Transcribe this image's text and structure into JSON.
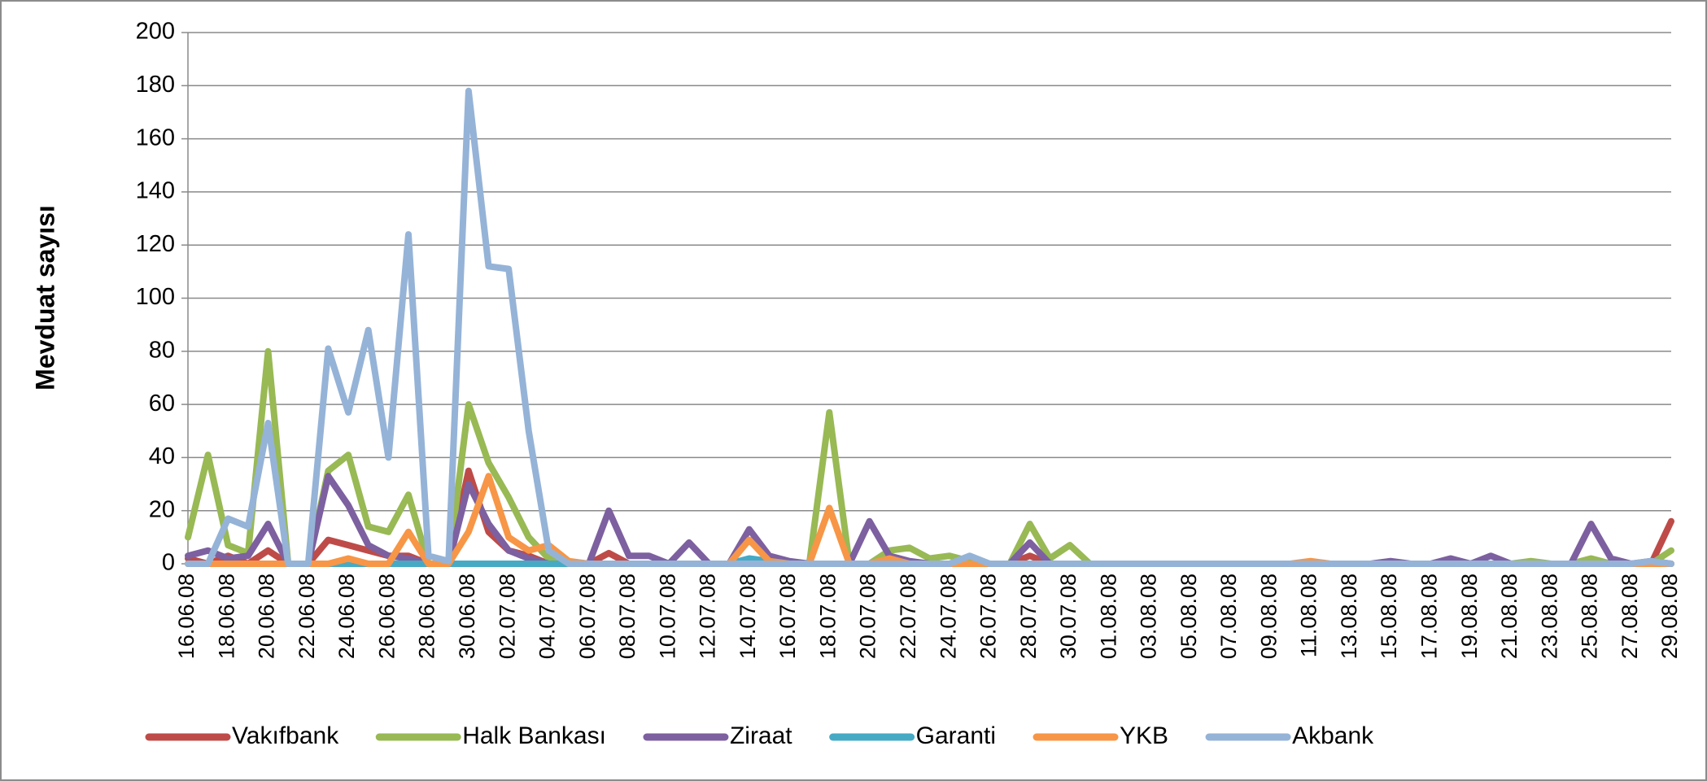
{
  "chart_data": {
    "type": "line",
    "y_label": "Mevduat sayısı",
    "categories": [
      "16.06.08",
      null,
      "18.06.08",
      null,
      "20.06.08",
      null,
      "22.06.08",
      null,
      "24.06.08",
      null,
      "26.06.08",
      null,
      "28.06.08",
      null,
      "30.06.08",
      null,
      "02.07.08",
      null,
      "04.07.08",
      null,
      "06.07.08",
      null,
      "08.07.08",
      null,
      "10.07.08",
      null,
      "12.07.08",
      null,
      "14.07.08",
      null,
      "16.07.08",
      null,
      "18.07.08",
      null,
      "20.07.08",
      null,
      "22.07.08",
      null,
      "24.07.08",
      null,
      "26.07.08",
      null,
      "28.07.08",
      null,
      "30.07.08",
      null,
      "01.08.08",
      null,
      "03.08.08",
      null,
      "05.08.08",
      null,
      "07.08.08",
      null,
      "09.08.08",
      null,
      "11.08.08",
      null,
      "13.08.08",
      null,
      "15.08.08",
      null,
      "17.08.08",
      null,
      "19.08.08",
      null,
      "21.08.08",
      null,
      "23.08.08",
      null,
      "25.08.08",
      null,
      "27.08.08",
      null,
      "29.08.08"
    ],
    "series": [
      {
        "name": "Vakıfbank",
        "color": "#be4b48",
        "values": [
          2,
          0,
          3,
          0,
          5,
          0,
          0,
          9,
          7,
          5,
          3,
          3,
          0,
          0,
          35,
          12,
          5,
          3,
          0,
          0,
          0,
          4,
          0,
          0,
          0,
          0,
          0,
          0,
          0,
          0,
          0,
          0,
          0,
          0,
          0,
          0,
          0,
          0,
          0,
          0,
          0,
          0,
          3,
          0,
          0,
          0,
          0,
          0,
          0,
          0,
          0,
          0,
          0,
          0,
          0,
          0,
          0,
          0,
          0,
          0,
          0,
          0,
          0,
          0,
          0,
          0,
          0,
          0,
          0,
          0,
          0,
          0,
          0,
          0,
          16
        ]
      },
      {
        "name": "Halk Bankası",
        "color": "#98b954",
        "values": [
          10,
          41,
          7,
          4,
          80,
          0,
          0,
          35,
          41,
          14,
          12,
          26,
          0,
          0,
          60,
          38,
          25,
          10,
          2,
          0,
          0,
          0,
          0,
          0,
          0,
          0,
          0,
          0,
          0,
          0,
          0,
          0,
          57,
          0,
          0,
          5,
          6,
          2,
          3,
          1,
          0,
          0,
          15,
          2,
          7,
          0,
          0,
          0,
          0,
          0,
          0,
          0,
          0,
          0,
          0,
          0,
          0,
          0,
          0,
          0,
          0,
          0,
          0,
          0,
          0,
          0,
          0,
          1,
          0,
          0,
          2,
          0,
          0,
          0,
          5
        ]
      },
      {
        "name": "Ziraat",
        "color": "#7d60a0",
        "values": [
          3,
          5,
          2,
          3,
          15,
          0,
          0,
          33,
          22,
          7,
          3,
          2,
          0,
          0,
          30,
          15,
          5,
          2,
          0,
          0,
          0,
          20,
          3,
          3,
          0,
          8,
          0,
          0,
          13,
          3,
          1,
          0,
          0,
          0,
          16,
          3,
          1,
          0,
          0,
          0,
          0,
          0,
          8,
          0,
          0,
          0,
          0,
          0,
          0,
          0,
          0,
          0,
          0,
          0,
          0,
          0,
          0,
          0,
          0,
          0,
          1,
          0,
          0,
          2,
          0,
          3,
          0,
          0,
          0,
          0,
          15,
          2,
          0,
          1,
          0
        ]
      },
      {
        "name": "Garanti",
        "color": "#46aac5",
        "values": [
          0,
          0,
          0,
          0,
          0,
          0,
          0,
          0,
          0,
          0,
          0,
          0,
          0,
          0,
          0,
          0,
          0,
          0,
          0,
          0,
          0,
          0,
          0,
          0,
          0,
          0,
          0,
          0,
          2,
          1,
          0,
          0,
          0,
          0,
          0,
          0,
          0,
          0,
          0,
          0,
          0,
          0,
          0,
          0,
          0,
          0,
          0,
          0,
          0,
          0,
          0,
          0,
          0,
          0,
          0,
          0,
          0,
          0,
          0,
          0,
          0,
          0,
          0,
          0,
          0,
          0,
          0,
          0,
          0,
          0,
          0,
          0,
          0,
          0,
          0
        ]
      },
      {
        "name": "YKB",
        "color": "#f79646",
        "values": [
          0,
          0,
          0,
          0,
          0,
          0,
          0,
          0,
          2,
          0,
          0,
          12,
          0,
          0,
          12,
          33,
          10,
          5,
          7,
          1,
          0,
          0,
          0,
          0,
          0,
          0,
          0,
          0,
          9,
          1,
          0,
          0,
          21,
          0,
          0,
          2,
          0,
          0,
          0,
          0,
          0,
          0,
          0,
          0,
          0,
          0,
          0,
          0,
          0,
          0,
          0,
          0,
          0,
          0,
          0,
          0,
          1,
          0,
          0,
          0,
          0,
          0,
          0,
          0,
          0,
          0,
          0,
          0,
          0,
          0,
          0,
          0,
          0,
          0,
          0
        ]
      },
      {
        "name": "Akbank",
        "color": "#95b3d7",
        "values": [
          0,
          0,
          17,
          14,
          53,
          0,
          0,
          81,
          57,
          88,
          40,
          124,
          3,
          1,
          178,
          112,
          111,
          50,
          5,
          0,
          0,
          0,
          0,
          0,
          0,
          0,
          0,
          0,
          0,
          0,
          0,
          0,
          0,
          0,
          0,
          0,
          0,
          0,
          0,
          3,
          0,
          0,
          0,
          0,
          0,
          0,
          0,
          0,
          0,
          0,
          0,
          0,
          0,
          0,
          0,
          0,
          0,
          0,
          0,
          0,
          0,
          0,
          0,
          0,
          0,
          0,
          0,
          0,
          0,
          0,
          0,
          0,
          0,
          1,
          0
        ]
      }
    ],
    "ylim": [
      0,
      200
    ],
    "yticks": [
      0,
      20,
      40,
      60,
      80,
      100,
      120,
      140,
      160,
      180,
      200
    ],
    "grid": true,
    "legend": "bottom"
  }
}
